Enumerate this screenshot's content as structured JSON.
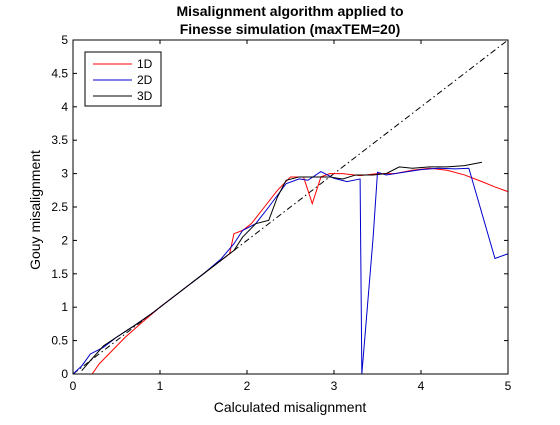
{
  "chart_data": {
    "type": "line",
    "title": [
      "Misalignment algorithm applied to",
      "Finesse simulation (maxTEM=20)"
    ],
    "xlabel": "Calculated misalignment",
    "ylabel": "Gouy misalignment",
    "xlim": [
      0,
      5
    ],
    "ylim": [
      0,
      5
    ],
    "xticks": [
      0,
      1,
      2,
      3,
      4,
      5
    ],
    "yticks": [
      0,
      0.5,
      1,
      1.5,
      2,
      2.5,
      3,
      3.5,
      4,
      4.5,
      5
    ],
    "xticklabels": [
      "0",
      "1",
      "2",
      "3",
      "4",
      "5"
    ],
    "yticklabels": [
      "0",
      "0.5",
      "1",
      "1.5",
      "2",
      "2.5",
      "3",
      "3.5",
      "4",
      "4.5",
      "5"
    ],
    "grid": false,
    "legend_position": "top-left",
    "reference_line": {
      "style": "dash-dot",
      "color": "#000000",
      "x": [
        0,
        5
      ],
      "y": [
        0,
        5
      ]
    },
    "series": [
      {
        "name": "1D",
        "color": "#ff0000",
        "x": [
          0.22,
          0.3,
          0.45,
          0.6,
          0.8,
          1.0,
          1.2,
          1.4,
          1.6,
          1.8,
          1.85,
          1.95,
          2.05,
          2.2,
          2.35,
          2.5,
          2.65,
          2.75,
          2.85,
          2.95,
          3.1,
          3.3,
          3.5,
          3.7,
          3.9,
          4.1,
          4.3,
          4.5,
          4.7,
          4.85,
          5.0
        ],
        "y": [
          0.0,
          0.15,
          0.35,
          0.55,
          0.78,
          1.0,
          1.2,
          1.4,
          1.6,
          1.8,
          2.1,
          2.15,
          2.25,
          2.5,
          2.75,
          2.95,
          2.95,
          2.55,
          2.95,
          3.0,
          3.0,
          2.97,
          3.0,
          3.0,
          3.05,
          3.08,
          3.05,
          2.98,
          2.88,
          2.8,
          2.73
        ]
      },
      {
        "name": "2D",
        "color": "#0000cc",
        "x": [
          0.0,
          0.1,
          0.2,
          0.35,
          0.5,
          0.7,
          0.9,
          1.1,
          1.3,
          1.5,
          1.7,
          1.85,
          1.95,
          2.1,
          2.25,
          2.45,
          2.6,
          2.7,
          2.85,
          3.0,
          3.15,
          3.3,
          3.32,
          3.45,
          3.5,
          3.6,
          3.8,
          4.0,
          4.2,
          4.4,
          4.55,
          4.85,
          5.0
        ],
        "y": [
          0.0,
          0.12,
          0.3,
          0.4,
          0.55,
          0.72,
          0.9,
          1.1,
          1.3,
          1.5,
          1.72,
          1.95,
          2.15,
          2.25,
          2.5,
          2.85,
          2.92,
          2.9,
          3.03,
          2.93,
          2.88,
          2.92,
          0.0,
          2.05,
          3.02,
          2.98,
          3.02,
          3.06,
          3.08,
          3.07,
          3.08,
          1.73,
          1.8
        ]
      },
      {
        "name": "3D",
        "color": "#000000",
        "x": [
          0.1,
          0.2,
          0.35,
          0.5,
          0.7,
          0.9,
          1.1,
          1.3,
          1.5,
          1.7,
          1.85,
          1.95,
          2.1,
          2.25,
          2.35,
          2.45,
          2.6,
          2.8,
          2.95,
          3.1,
          3.25,
          3.45,
          3.6,
          3.75,
          3.9,
          4.1,
          4.3,
          4.5,
          4.7
        ],
        "y": [
          0.05,
          0.2,
          0.42,
          0.55,
          0.72,
          0.9,
          1.1,
          1.3,
          1.5,
          1.7,
          1.85,
          2.05,
          2.25,
          2.3,
          2.65,
          2.9,
          2.95,
          2.95,
          2.95,
          2.92,
          2.98,
          2.98,
          3.0,
          3.1,
          3.08,
          3.1,
          3.1,
          3.12,
          3.17
        ]
      }
    ]
  }
}
